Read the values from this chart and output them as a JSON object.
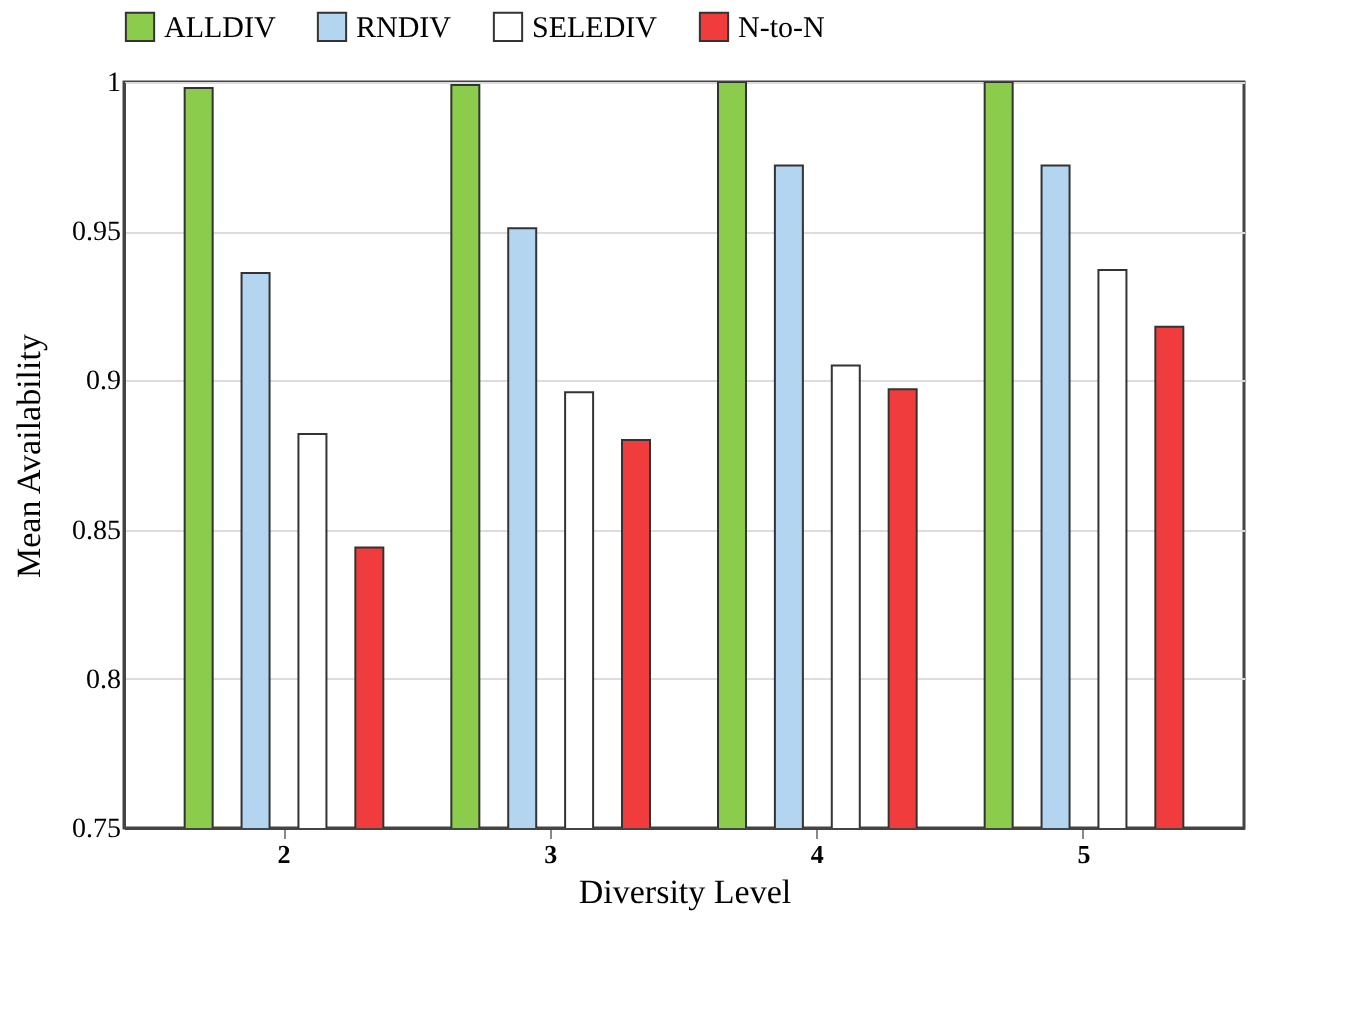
{
  "chart_data": {
    "type": "bar",
    "xlabel": "Diversity Level",
    "ylabel": "Mean Availability",
    "categories": [
      "2",
      "3",
      "4",
      "5"
    ],
    "series": [
      {
        "name": "ALLDIV",
        "color": "#8ccc4c",
        "values": [
          0.998,
          0.999,
          1.0,
          1.0
        ]
      },
      {
        "name": "RNDIV",
        "color": "#b3d5f0",
        "values": [
          0.936,
          0.951,
          0.972,
          0.972
        ]
      },
      {
        "name": "SELEDIV",
        "color": "#ffffff",
        "values": [
          0.882,
          0.896,
          0.905,
          0.937
        ]
      },
      {
        "name": "N-to-N",
        "color": "#f03c3c",
        "values": [
          0.844,
          0.88,
          0.897,
          0.918
        ]
      }
    ],
    "ylim": [
      0.75,
      1
    ],
    "yticks": [
      0.75,
      0.8,
      0.85,
      0.9,
      0.95,
      1
    ],
    "grid": "y",
    "legend": "top"
  }
}
